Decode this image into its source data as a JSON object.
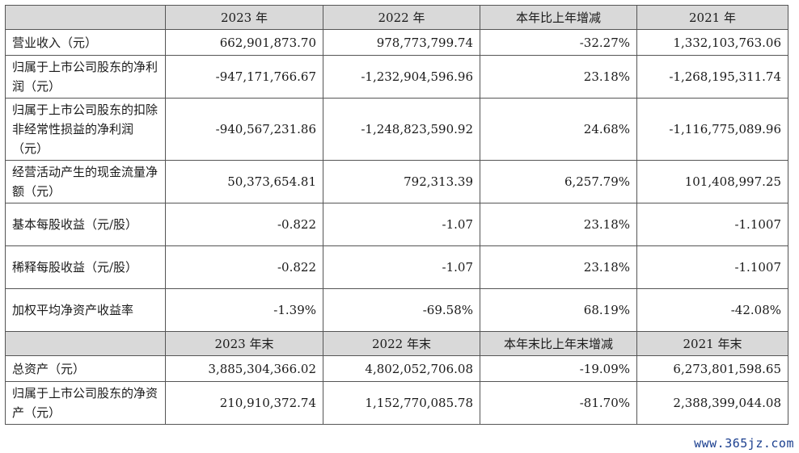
{
  "header1": [
    "",
    "2023 年",
    "2022 年",
    "本年比上年增减",
    "2021 年"
  ],
  "rows1": [
    {
      "label": "营业收入（元）",
      "values": [
        "662,901,873.70",
        "978,773,799.74",
        "-32.27%",
        "1,332,103,763.06"
      ]
    },
    {
      "label": "归属于上市公司股东的净利润（元）",
      "values": [
        "-947,171,766.67",
        "-1,232,904,596.96",
        "23.18%",
        "-1,268,195,311.74"
      ]
    },
    {
      "label": "归属于上市公司股东的扣除非经常性损益的净利润（元）",
      "values": [
        "-940,567,231.86",
        "-1,248,823,590.92",
        "24.68%",
        "-1,116,775,089.96"
      ]
    },
    {
      "label": "经营活动产生的现金流量净额（元）",
      "values": [
        "50,373,654.81",
        "792,313.39",
        "6,257.79%",
        "101,408,997.25"
      ]
    },
    {
      "label": "基本每股收益（元/股）",
      "values": [
        "-0.822",
        "-1.07",
        "23.18%",
        "-1.1007"
      ]
    },
    {
      "label": "稀释每股收益（元/股）",
      "values": [
        "-0.822",
        "-1.07",
        "23.18%",
        "-1.1007"
      ]
    },
    {
      "label": "加权平均净资产收益率",
      "values": [
        "-1.39%",
        "-69.58%",
        "68.19%",
        "-42.08%"
      ]
    }
  ],
  "header2": [
    "",
    "2023 年末",
    "2022 年末",
    "本年末比上年末增减",
    "2021 年末"
  ],
  "rows2": [
    {
      "label": "总资产（元）",
      "values": [
        "3,885,304,366.02",
        "4,802,052,706.08",
        "-19.09%",
        "6,273,801,598.65"
      ]
    },
    {
      "label": "归属于上市公司股东的净资产（元）",
      "values": [
        "210,910,372.74",
        "1,152,770,085.78",
        "-81.70%",
        "2,388,399,044.08"
      ]
    }
  ],
  "watermark": "www.365jz.com"
}
